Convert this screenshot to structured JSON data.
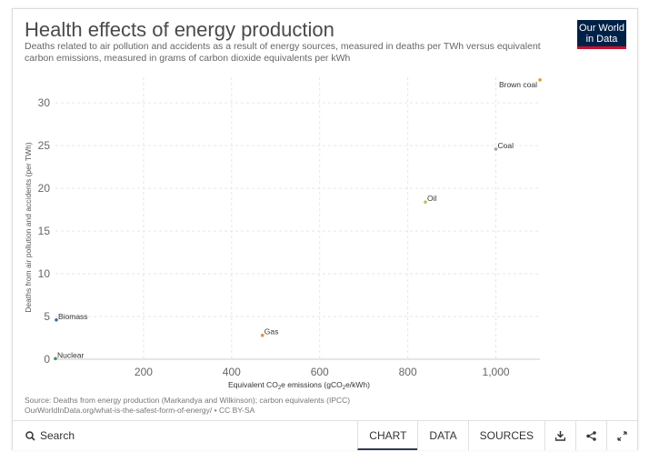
{
  "header": {
    "title": "Health effects of energy production",
    "subtitle": "Deaths related to air pollution and accidents as a result of energy sources, measured in deaths per TWh versus equivalent carbon emissions, measured in grams of carbon dioxide equivalents per kWh",
    "logo_line1": "Our World",
    "logo_line2": "in Data"
  },
  "chart_data": {
    "type": "scatter",
    "title": "Health effects of energy production",
    "xlabel_pre": "Equivalent CO",
    "xlabel_sub": "2",
    "xlabel_mid": "e emissions (gCO",
    "xlabel_sub2": "2",
    "xlabel_post": "e/kWh)",
    "ylabel": "Deaths from air pollution and accidents (per TWh)",
    "xlim": [
      0,
      1100
    ],
    "ylim": [
      0,
      33
    ],
    "xticks": [
      200,
      400,
      600,
      800,
      1000
    ],
    "xtick_labels": [
      "200",
      "400",
      "600",
      "800",
      "1,000"
    ],
    "yticks": [
      0,
      5,
      10,
      15,
      20,
      25,
      30
    ],
    "ytick_labels": [
      "0",
      "5",
      "10",
      "15",
      "20",
      "25",
      "30"
    ],
    "grid": true,
    "points": [
      {
        "label": "Brown coal",
        "x": 1100,
        "y": 32.7,
        "color": "#e0a030",
        "label_pos": "left-below"
      },
      {
        "label": "Coal",
        "x": 1000,
        "y": 24.6,
        "color": "#9aa5b0",
        "label_pos": "right"
      },
      {
        "label": "Oil",
        "x": 840,
        "y": 18.4,
        "color": "#b8c44a",
        "label_pos": "right"
      },
      {
        "label": "Biomass",
        "x": 2,
        "y": 4.6,
        "color": "#3a6cb0",
        "label_pos": "right"
      },
      {
        "label": "Gas",
        "x": 470,
        "y": 2.8,
        "color": "#e8903a",
        "label_pos": "right"
      },
      {
        "label": "Nuclear",
        "x": 0,
        "y": 0.07,
        "color": "#3a9a5a",
        "label_pos": "right"
      }
    ]
  },
  "source": {
    "line1": "Source: Deaths from energy production (Markandya and Wilkinson); carbon equivalents (IPCC)",
    "line2": "OurWorldInData.org/what-is-the-safest-form-of-energy/ • CC BY-SA"
  },
  "footer": {
    "search_label": "Search",
    "tabs": [
      "CHART",
      "DATA",
      "SOURCES"
    ],
    "icons": [
      "download-icon",
      "share-icon",
      "expand-icon"
    ]
  }
}
